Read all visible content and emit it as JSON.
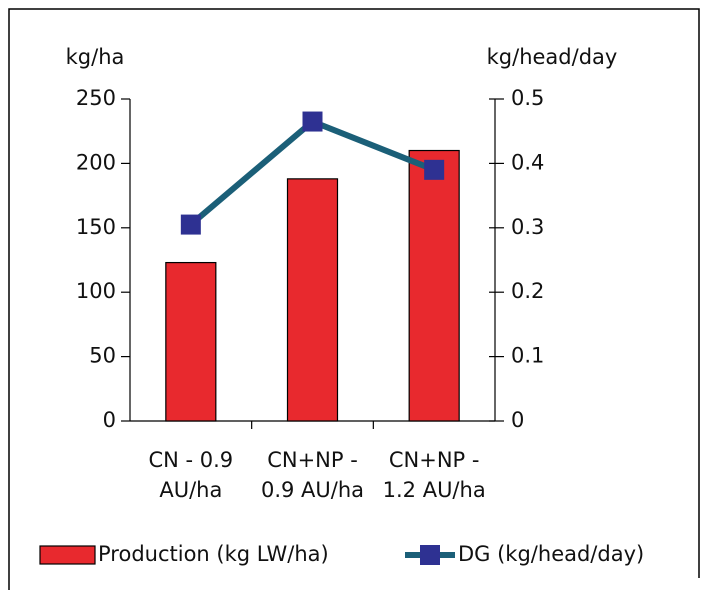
{
  "chart_data": {
    "type": "bar_line",
    "y_label": "kg/ha",
    "y2_label": "kg/head/day",
    "categories": [
      [
        "CN - 0.9",
        "AU/ha"
      ],
      [
        "CN+NP -",
        "0.9 AU/ha"
      ],
      [
        "CN+NP -",
        "1.2 AU/ha"
      ]
    ],
    "series": [
      {
        "name": "Production (kg LW/ha)",
        "type": "bar",
        "color": "#e8292e",
        "values": [
          123,
          188,
          210
        ]
      },
      {
        "name": "DG (kg/head/day)",
        "type": "line",
        "axis": "y2",
        "color": "#1b5f78",
        "marker_color": "#2e3192",
        "values": [
          0.305,
          0.465,
          0.39
        ]
      }
    ],
    "ylim": [
      0,
      250
    ],
    "yticks": [
      0,
      50,
      100,
      150,
      200,
      250
    ],
    "y2lim": [
      0,
      0.5
    ],
    "y2ticks": [
      0,
      0.1,
      0.2,
      0.3,
      0.4,
      0.5
    ]
  }
}
